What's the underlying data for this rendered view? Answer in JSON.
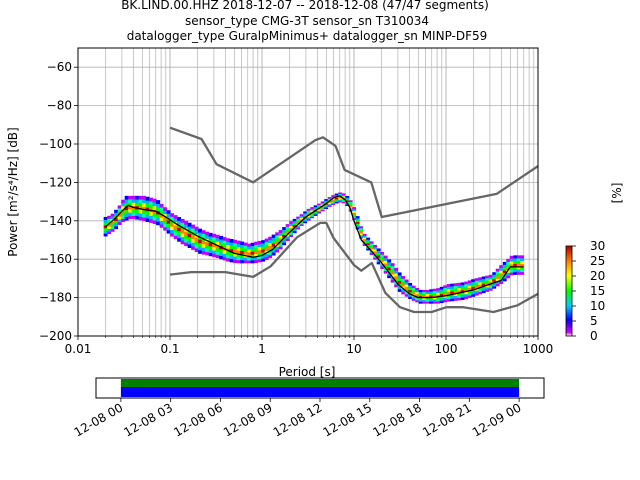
{
  "title": {
    "line1": "BK.LIND.00.HHZ   2018-12-07 -- 2018-12-08  (47/47 segments)",
    "line2": "sensor_type CMG-3T sensor_sn T310034",
    "line3": "datalogger_type GuralpMinimus+ datalogger_sn MINP-DF59"
  },
  "colorbar": {
    "label": "[%]",
    "ticks": [
      "0",
      "5",
      "10",
      "15",
      "20",
      "25",
      "30"
    ],
    "range": [
      0,
      30
    ]
  },
  "timeline": {
    "ticks": [
      "12-08 00",
      "12-08 03",
      "12-08 06",
      "12-08 09",
      "12-08 12",
      "12-08 15",
      "12-08 18",
      "12-08 21",
      "12-09 00"
    ],
    "range_hours": [
      -1.5,
      25.5
    ],
    "coverage_hours": [
      0,
      24
    ],
    "colors": {
      "green": "#008000",
      "blue": "#0000ff"
    }
  },
  "chart_data": {
    "type": "line",
    "xlabel": "Period [s]",
    "ylabel": "Power [m²/s⁴/Hz] [dB]",
    "x_scale": "log",
    "xlim": [
      0.01,
      1000
    ],
    "ylim": [
      -200,
      -50
    ],
    "xticks": [
      {
        "v": 0.01,
        "label": "0.01"
      },
      {
        "v": 0.1,
        "label": "0.1"
      },
      {
        "v": 1,
        "label": "1"
      },
      {
        "v": 10,
        "label": "10"
      },
      {
        "v": 100,
        "label": "100"
      },
      {
        "v": 1000,
        "label": "1000"
      }
    ],
    "yticks": [
      {
        "v": -60,
        "label": "−60"
      },
      {
        "v": -80,
        "label": "−80"
      },
      {
        "v": -100,
        "label": "−100"
      },
      {
        "v": -120,
        "label": "−120"
      },
      {
        "v": -140,
        "label": "−140"
      },
      {
        "v": -160,
        "label": "−160"
      },
      {
        "v": -180,
        "label": "−180"
      },
      {
        "v": -200,
        "label": "−200"
      }
    ],
    "grid": true,
    "series": [
      {
        "role": "nhnm",
        "color": "#666666",
        "points": [
          [
            0.1,
            -91.5
          ],
          [
            0.22,
            -97.4
          ],
          [
            0.32,
            -110.5
          ],
          [
            0.8,
            -120
          ],
          [
            3.8,
            -98
          ],
          [
            4.6,
            -96.5
          ],
          [
            6.3,
            -101
          ],
          [
            7.9,
            -113.5
          ],
          [
            15.4,
            -120
          ],
          [
            20,
            -138
          ],
          [
            354.8,
            -126
          ],
          [
            1000,
            -111.5
          ]
        ]
      },
      {
        "role": "nlnm",
        "color": "#666666",
        "points": [
          [
            0.1,
            -168
          ],
          [
            0.17,
            -166.7
          ],
          [
            0.4,
            -166.7
          ],
          [
            0.8,
            -169.2
          ],
          [
            1.24,
            -163.7
          ],
          [
            2.4,
            -148.6
          ],
          [
            4.3,
            -141.1
          ],
          [
            5,
            -141.1
          ],
          [
            6,
            -149
          ],
          [
            10,
            -163
          ],
          [
            12,
            -166
          ],
          [
            15.6,
            -162
          ],
          [
            21.9,
            -177.5
          ],
          [
            31.6,
            -185
          ],
          [
            45,
            -187.5
          ],
          [
            70,
            -187.5
          ],
          [
            101,
            -185
          ],
          [
            154,
            -185
          ],
          [
            328,
            -187.5
          ],
          [
            600,
            -184
          ],
          [
            1000,
            -178
          ]
        ]
      },
      {
        "role": "mode",
        "color": "#000000",
        "points": [
          [
            0.02,
            -143
          ],
          [
            0.025,
            -139
          ],
          [
            0.03,
            -135
          ],
          [
            0.035,
            -132
          ],
          [
            0.04,
            -133
          ],
          [
            0.05,
            -134
          ],
          [
            0.07,
            -135
          ],
          [
            0.09,
            -138
          ],
          [
            0.12,
            -142
          ],
          [
            0.2,
            -148
          ],
          [
            0.3,
            -152
          ],
          [
            0.5,
            -157
          ],
          [
            0.8,
            -159
          ],
          [
            1,
            -158
          ],
          [
            1.3,
            -155
          ],
          [
            2,
            -146
          ],
          [
            3,
            -138
          ],
          [
            4,
            -134
          ],
          [
            5,
            -131
          ],
          [
            6,
            -128
          ],
          [
            7,
            -127
          ],
          [
            8,
            -129
          ],
          [
            9,
            -133
          ],
          [
            10,
            -140
          ],
          [
            12,
            -150
          ],
          [
            15,
            -155
          ],
          [
            20,
            -162
          ],
          [
            30,
            -173
          ],
          [
            40,
            -178
          ],
          [
            50,
            -180
          ],
          [
            70,
            -180
          ],
          [
            100,
            -179
          ],
          [
            200,
            -176
          ],
          [
            300,
            -173
          ],
          [
            400,
            -171
          ],
          [
            500,
            -164
          ],
          [
            700,
            -164
          ]
        ]
      }
    ],
    "ppsd_band": [
      [
        0.019,
        -148,
        -138
      ],
      [
        0.022,
        -146,
        -137
      ],
      [
        0.025,
        -144,
        -134
      ],
      [
        0.028,
        -141,
        -131
      ],
      [
        0.031,
        -140,
        -127
      ],
      [
        0.035,
        -139,
        -127
      ],
      [
        0.04,
        -139,
        -127
      ],
      [
        0.05,
        -140,
        -127
      ],
      [
        0.06,
        -141,
        -128
      ],
      [
        0.07,
        -142,
        -129
      ],
      [
        0.08,
        -144,
        -132
      ],
      [
        0.1,
        -148,
        -136
      ],
      [
        0.13,
        -152,
        -139
      ],
      [
        0.17,
        -155,
        -142
      ],
      [
        0.2,
        -157,
        -144
      ],
      [
        0.25,
        -158,
        -146
      ],
      [
        0.3,
        -159,
        -147
      ],
      [
        0.35,
        -160,
        -148
      ],
      [
        0.4,
        -161,
        -149
      ],
      [
        0.5,
        -162,
        -150
      ],
      [
        0.6,
        -162,
        -151
      ],
      [
        0.7,
        -162,
        -152
      ],
      [
        0.8,
        -162,
        -151
      ],
      [
        1,
        -161,
        -150
      ],
      [
        1.2,
        -159,
        -148
      ],
      [
        1.5,
        -155,
        -145
      ],
      [
        2,
        -148,
        -140
      ],
      [
        2.5,
        -143,
        -137
      ],
      [
        3,
        -140,
        -134
      ],
      [
        4,
        -136,
        -131
      ],
      [
        5,
        -133,
        -128
      ],
      [
        6,
        -131,
        -126
      ],
      [
        7,
        -130,
        -125
      ],
      [
        8,
        -132,
        -127
      ],
      [
        9,
        -136,
        -130
      ],
      [
        10,
        -142,
        -135
      ],
      [
        12,
        -152,
        -146
      ],
      [
        15,
        -158,
        -151
      ],
      [
        20,
        -166,
        -157
      ],
      [
        25,
        -172,
        -162
      ],
      [
        30,
        -177,
        -167
      ],
      [
        40,
        -181,
        -173
      ],
      [
        50,
        -183,
        -176
      ],
      [
        60,
        -183,
        -176
      ],
      [
        80,
        -183,
        -175
      ],
      [
        100,
        -182,
        -173
      ],
      [
        150,
        -181,
        -172
      ],
      [
        200,
        -179,
        -170
      ],
      [
        300,
        -176,
        -168
      ],
      [
        400,
        -172,
        -162
      ],
      [
        500,
        -168,
        -158
      ],
      [
        700,
        -168,
        -158
      ]
    ]
  }
}
